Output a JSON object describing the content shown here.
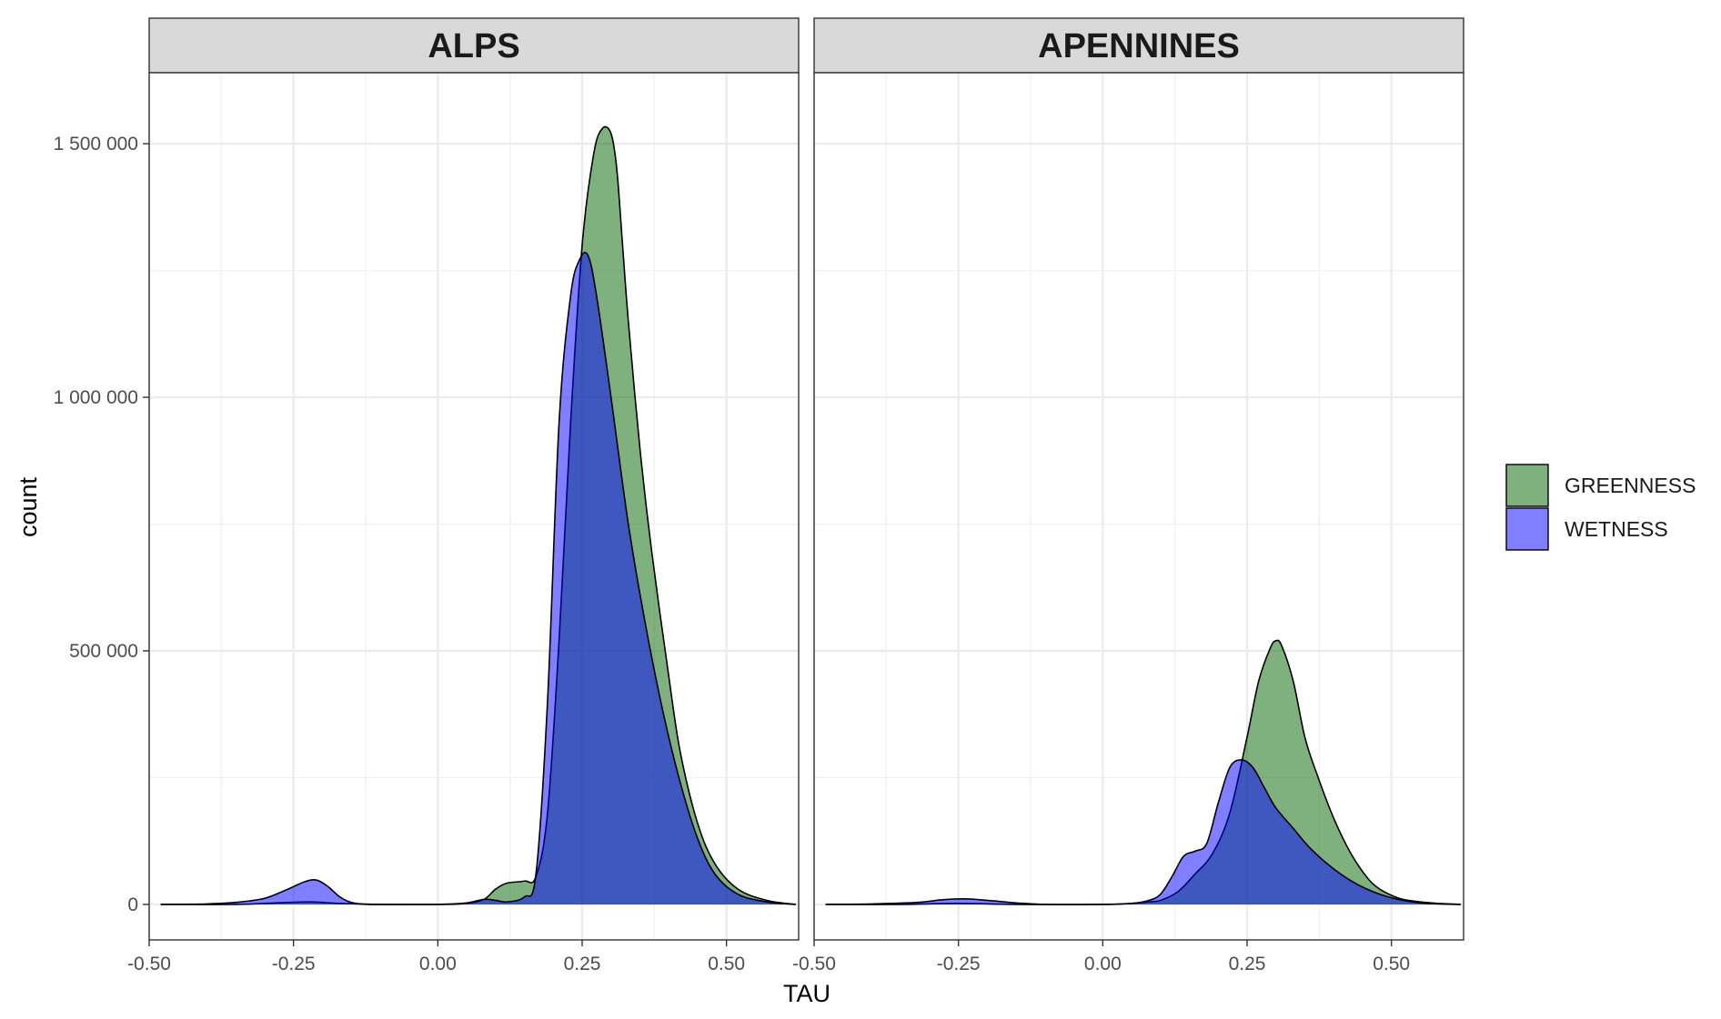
{
  "chart_data": {
    "type": "area",
    "xlabel": "TAU",
    "ylabel": "count",
    "xlim": [
      -0.5,
      0.625
    ],
    "ylim": [
      -70000,
      1640000
    ],
    "x_ticks": [
      -0.5,
      -0.25,
      0.0,
      0.25,
      0.5
    ],
    "x_tick_labels": [
      "-0.50",
      "-0.25",
      "0.00",
      "0.25",
      "0.50"
    ],
    "y_ticks": [
      0,
      500000,
      1000000,
      1500000
    ],
    "y_tick_labels": [
      "0",
      "500 000",
      "1 000 000",
      "1 500 000"
    ],
    "grid": true,
    "legend_position": "right",
    "colors": {
      "GREENNESS": "#006400",
      "WETNESS": "#0000ff"
    },
    "panels": [
      {
        "title": "ALPS",
        "series": [
          {
            "name": "GREENNESS",
            "x": [
              -0.48,
              -0.35,
              -0.28,
              -0.22,
              -0.17,
              -0.1,
              0.0,
              0.05,
              0.08,
              0.1,
              0.12,
              0.15,
              0.17,
              0.19,
              0.21,
              0.23,
              0.25,
              0.27,
              0.285,
              0.3,
              0.31,
              0.32,
              0.33,
              0.35,
              0.37,
              0.4,
              0.42,
              0.45,
              0.48,
              0.52,
              0.57,
              0.62
            ],
            "y": [
              0,
              0,
              3000,
              5000,
              2000,
              0,
              0,
              2000,
              10000,
              30000,
              42000,
              46000,
              55000,
              180000,
              520000,
              950000,
              1300000,
              1480000,
              1530000,
              1520000,
              1450000,
              1300000,
              1150000,
              900000,
              700000,
              450000,
              300000,
              160000,
              80000,
              30000,
              8000,
              0
            ]
          },
          {
            "name": "WETNESS",
            "x": [
              -0.48,
              -0.4,
              -0.35,
              -0.3,
              -0.26,
              -0.23,
              -0.21,
              -0.19,
              -0.17,
              -0.15,
              -0.12,
              -0.05,
              0.0,
              0.05,
              0.08,
              0.1,
              0.12,
              0.15,
              0.17,
              0.19,
              0.21,
              0.23,
              0.245,
              0.26,
              0.275,
              0.3,
              0.33,
              0.36,
              0.39,
              0.42,
              0.45,
              0.48,
              0.52,
              0.57,
              0.62
            ],
            "y": [
              0,
              1000,
              4000,
              12000,
              30000,
              45000,
              48000,
              35000,
              15000,
              4000,
              0,
              0,
              0,
              3000,
              10000,
              8000,
              5000,
              15000,
              60000,
              400000,
              950000,
              1200000,
              1270000,
              1280000,
              1200000,
              1000000,
              750000,
              550000,
              380000,
              240000,
              130000,
              60000,
              20000,
              5000,
              0
            ]
          }
        ]
      },
      {
        "title": "APENNINES",
        "series": [
          {
            "name": "GREENNESS",
            "x": [
              -0.48,
              -0.35,
              -0.25,
              -0.15,
              0.0,
              0.05,
              0.08,
              0.1,
              0.13,
              0.16,
              0.19,
              0.22,
              0.25,
              0.27,
              0.29,
              0.3,
              0.31,
              0.33,
              0.35,
              0.37,
              0.4,
              0.43,
              0.46,
              0.48,
              0.5,
              0.52,
              0.55,
              0.58,
              0.62
            ],
            "y": [
              0,
              0,
              2000,
              0,
              0,
              2000,
              5000,
              8000,
              25000,
              60000,
              100000,
              180000,
              330000,
              440000,
              505000,
              520000,
              510000,
              440000,
              330000,
              260000,
              170000,
              100000,
              50000,
              30000,
              18000,
              10000,
              5000,
              2000,
              0
            ]
          },
          {
            "name": "WETNESS",
            "x": [
              -0.48,
              -0.4,
              -0.32,
              -0.28,
              -0.24,
              -0.2,
              -0.15,
              -0.1,
              0.0,
              0.05,
              0.08,
              0.1,
              0.12,
              0.14,
              0.16,
              0.18,
              0.2,
              0.22,
              0.24,
              0.26,
              0.28,
              0.3,
              0.33,
              0.36,
              0.4,
              0.44,
              0.48,
              0.52,
              0.56,
              0.62
            ],
            "y": [
              0,
              1000,
              4000,
              9000,
              11000,
              8000,
              3000,
              0,
              0,
              2000,
              8000,
              20000,
              55000,
              95000,
              105000,
              120000,
              200000,
              270000,
              285000,
              270000,
              230000,
              190000,
              150000,
              110000,
              70000,
              40000,
              20000,
              8000,
              2000,
              0
            ]
          }
        ]
      }
    ]
  }
}
